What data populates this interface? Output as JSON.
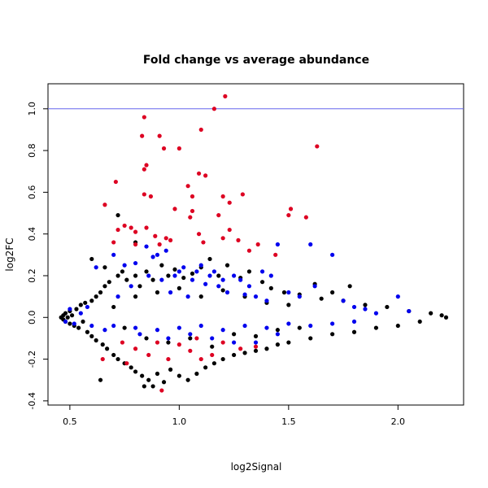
{
  "chart_data": {
    "type": "scatter",
    "title": "Fold change vs average abundance",
    "xlabel": "log2Signal",
    "ylabel": "log2FC",
    "xlim": [
      0.4,
      2.3
    ],
    "ylim": [
      -0.42,
      1.12
    ],
    "x_ticks": [
      0.5,
      1.0,
      1.5,
      2.0
    ],
    "x_tick_labels": [
      "0.5",
      "1.0",
      "1.5",
      "2.0"
    ],
    "y_ticks": [
      -0.4,
      -0.2,
      0.0,
      0.2,
      0.4,
      0.6,
      0.8,
      1.0
    ],
    "y_tick_labels": [
      "-0.4",
      "-0.2",
      "0.0",
      "0.2",
      "0.4",
      "0.6",
      "0.8",
      "1.0"
    ],
    "reference_line": {
      "y": 1.0,
      "color": "#6666ee"
    },
    "grid": false,
    "colors": {
      "black": "#000000",
      "blue": "#0000ee",
      "red": "#dd0022"
    },
    "series": [
      {
        "color": "black",
        "points": [
          [
            0.46,
            0.0
          ],
          [
            0.47,
            0.01
          ],
          [
            0.47,
            -0.01
          ],
          [
            0.48,
            0.02
          ],
          [
            0.48,
            -0.02
          ],
          [
            0.49,
            0.0
          ],
          [
            0.5,
            0.03
          ],
          [
            0.5,
            -0.03
          ],
          [
            0.51,
            0.01
          ],
          [
            0.52,
            -0.04
          ],
          [
            0.53,
            0.04
          ],
          [
            0.54,
            -0.05
          ],
          [
            0.55,
            0.06
          ],
          [
            0.56,
            -0.02
          ],
          [
            0.57,
            0.07
          ],
          [
            0.58,
            -0.07
          ],
          [
            0.6,
            0.08
          ],
          [
            0.6,
            -0.09
          ],
          [
            0.62,
            0.1
          ],
          [
            0.62,
            -0.11
          ],
          [
            0.64,
            0.12
          ],
          [
            0.65,
            -0.13
          ],
          [
            0.66,
            0.15
          ],
          [
            0.67,
            -0.15
          ],
          [
            0.68,
            0.17
          ],
          [
            0.7,
            -0.18
          ],
          [
            0.72,
            0.2
          ],
          [
            0.72,
            -0.2
          ],
          [
            0.74,
            0.22
          ],
          [
            0.75,
            -0.22
          ],
          [
            0.76,
            0.18
          ],
          [
            0.78,
            -0.24
          ],
          [
            0.8,
            0.2
          ],
          [
            0.8,
            -0.26
          ],
          [
            0.82,
            0.15
          ],
          [
            0.83,
            -0.28
          ],
          [
            0.85,
            0.22
          ],
          [
            0.86,
            -0.3
          ],
          [
            0.88,
            0.18
          ],
          [
            0.9,
            -0.27
          ],
          [
            0.92,
            0.25
          ],
          [
            0.93,
            -0.31
          ],
          [
            0.95,
            0.2
          ],
          [
            0.96,
            -0.25
          ],
          [
            0.98,
            0.23
          ],
          [
            1.0,
            -0.28
          ],
          [
            1.02,
            0.19
          ],
          [
            1.04,
            -0.3
          ],
          [
            1.06,
            0.21
          ],
          [
            1.08,
            -0.27
          ],
          [
            1.1,
            0.24
          ],
          [
            1.12,
            -0.24
          ],
          [
            1.14,
            0.28
          ],
          [
            1.16,
            -0.22
          ],
          [
            1.18,
            0.2
          ],
          [
            1.2,
            -0.2
          ],
          [
            1.22,
            0.25
          ],
          [
            1.25,
            -0.18
          ],
          [
            1.28,
            0.19
          ],
          [
            1.3,
            -0.17
          ],
          [
            1.32,
            0.22
          ],
          [
            1.35,
            -0.16
          ],
          [
            1.38,
            0.17
          ],
          [
            1.4,
            -0.15
          ],
          [
            1.42,
            0.14
          ],
          [
            1.45,
            -0.13
          ],
          [
            1.48,
            0.12
          ],
          [
            1.5,
            -0.12
          ],
          [
            1.55,
            0.11
          ],
          [
            1.6,
            -0.1
          ],
          [
            1.65,
            0.09
          ],
          [
            1.7,
            -0.08
          ],
          [
            1.75,
            0.08
          ],
          [
            1.8,
            -0.07
          ],
          [
            1.85,
            0.06
          ],
          [
            1.9,
            -0.05
          ],
          [
            1.95,
            0.05
          ],
          [
            2.0,
            -0.04
          ],
          [
            2.05,
            0.03
          ],
          [
            2.1,
            -0.02
          ],
          [
            2.15,
            0.02
          ],
          [
            2.2,
            0.01
          ],
          [
            2.22,
            0.0
          ],
          [
            0.7,
            0.05
          ],
          [
            0.75,
            -0.05
          ],
          [
            0.8,
            0.1
          ],
          [
            0.85,
            -0.1
          ],
          [
            0.9,
            0.12
          ],
          [
            0.95,
            -0.12
          ],
          [
            1.0,
            0.14
          ],
          [
            1.05,
            -0.1
          ],
          [
            1.1,
            0.1
          ],
          [
            1.15,
            -0.14
          ],
          [
            1.2,
            0.13
          ],
          [
            1.25,
            -0.08
          ],
          [
            1.3,
            0.1
          ],
          [
            1.35,
            -0.09
          ],
          [
            1.4,
            0.07
          ],
          [
            1.45,
            -0.06
          ],
          [
            1.5,
            0.06
          ],
          [
            1.55,
            -0.05
          ],
          [
            0.6,
            0.28
          ],
          [
            0.66,
            0.24
          ],
          [
            0.8,
            0.36
          ],
          [
            0.88,
            -0.33
          ],
          [
            0.84,
            -0.33
          ],
          [
            0.64,
            -0.3
          ],
          [
            0.72,
            0.49
          ],
          [
            1.62,
            0.16
          ],
          [
            1.7,
            0.12
          ],
          [
            1.78,
            0.15
          ]
        ]
      },
      {
        "color": "blue",
        "points": [
          [
            0.48,
            -0.02
          ],
          [
            0.5,
            0.04
          ],
          [
            0.52,
            -0.03
          ],
          [
            0.55,
            0.02
          ],
          [
            0.58,
            0.05
          ],
          [
            0.6,
            -0.04
          ],
          [
            0.62,
            0.24
          ],
          [
            0.66,
            -0.06
          ],
          [
            0.7,
            0.3
          ],
          [
            0.72,
            0.1
          ],
          [
            0.75,
            0.25
          ],
          [
            0.78,
            0.15
          ],
          [
            0.8,
            0.26
          ],
          [
            0.82,
            -0.08
          ],
          [
            0.85,
            0.34
          ],
          [
            0.86,
            0.2
          ],
          [
            0.88,
            0.29
          ],
          [
            0.9,
            0.3
          ],
          [
            0.92,
            0.18
          ],
          [
            0.94,
            0.32
          ],
          [
            0.96,
            0.12
          ],
          [
            0.98,
            0.2
          ],
          [
            1.0,
            0.22
          ],
          [
            1.02,
            0.24
          ],
          [
            1.04,
            0.1
          ],
          [
            1.06,
            0.18
          ],
          [
            1.08,
            0.22
          ],
          [
            1.1,
            0.25
          ],
          [
            1.12,
            0.16
          ],
          [
            1.14,
            0.2
          ],
          [
            1.16,
            0.22
          ],
          [
            1.18,
            0.15
          ],
          [
            1.2,
            0.18
          ],
          [
            1.22,
            0.12
          ],
          [
            1.25,
            0.2
          ],
          [
            1.28,
            0.18
          ],
          [
            1.3,
            0.11
          ],
          [
            1.32,
            0.15
          ],
          [
            1.35,
            0.1
          ],
          [
            1.38,
            0.22
          ],
          [
            1.4,
            0.08
          ],
          [
            1.42,
            0.2
          ],
          [
            1.45,
            0.35
          ],
          [
            1.5,
            0.12
          ],
          [
            1.55,
            0.1
          ],
          [
            1.6,
            0.35
          ],
          [
            1.62,
            0.15
          ],
          [
            1.7,
            0.3
          ],
          [
            1.75,
            0.08
          ],
          [
            1.8,
            0.05
          ],
          [
            1.85,
            0.04
          ],
          [
            1.9,
            0.02
          ],
          [
            2.0,
            0.1
          ],
          [
            2.05,
            0.03
          ],
          [
            0.7,
            -0.04
          ],
          [
            0.8,
            -0.05
          ],
          [
            0.9,
            -0.06
          ],
          [
            1.0,
            -0.05
          ],
          [
            1.1,
            -0.04
          ],
          [
            1.2,
            -0.06
          ],
          [
            1.3,
            -0.04
          ],
          [
            1.4,
            -0.05
          ],
          [
            1.5,
            -0.03
          ],
          [
            1.6,
            -0.04
          ],
          [
            1.7,
            -0.03
          ],
          [
            1.8,
            -0.02
          ],
          [
            0.95,
            -0.1
          ],
          [
            1.05,
            -0.08
          ],
          [
            1.15,
            -0.1
          ],
          [
            1.25,
            -0.12
          ],
          [
            1.35,
            -0.12
          ],
          [
            1.45,
            -0.08
          ]
        ]
      },
      {
        "color": "red",
        "points": [
          [
            0.84,
            0.96
          ],
          [
            0.83,
            0.87
          ],
          [
            0.85,
            0.73
          ],
          [
            0.84,
            0.71
          ],
          [
            0.91,
            0.87
          ],
          [
            0.93,
            0.81
          ],
          [
            1.0,
            0.81
          ],
          [
            1.1,
            0.9
          ],
          [
            1.16,
            1.0
          ],
          [
            1.21,
            1.06
          ],
          [
            1.63,
            0.82
          ],
          [
            1.12,
            0.68
          ],
          [
            1.09,
            0.69
          ],
          [
            1.04,
            0.63
          ],
          [
            1.06,
            0.58
          ],
          [
            1.2,
            0.58
          ],
          [
            1.23,
            0.55
          ],
          [
            1.29,
            0.59
          ],
          [
            0.71,
            0.65
          ],
          [
            0.66,
            0.54
          ],
          [
            0.84,
            0.59
          ],
          [
            0.87,
            0.58
          ],
          [
            0.75,
            0.44
          ],
          [
            0.78,
            0.43
          ],
          [
            0.72,
            0.42
          ],
          [
            0.8,
            0.41
          ],
          [
            0.85,
            0.43
          ],
          [
            0.89,
            0.39
          ],
          [
            0.94,
            0.38
          ],
          [
            0.98,
            0.52
          ],
          [
            1.05,
            0.48
          ],
          [
            1.06,
            0.51
          ],
          [
            1.09,
            0.4
          ],
          [
            1.18,
            0.49
          ],
          [
            1.23,
            0.42
          ],
          [
            1.27,
            0.37
          ],
          [
            1.32,
            0.32
          ],
          [
            1.36,
            0.35
          ],
          [
            1.5,
            0.49
          ],
          [
            1.51,
            0.52
          ],
          [
            1.58,
            0.48
          ],
          [
            1.44,
            0.3
          ],
          [
            0.7,
            0.36
          ],
          [
            0.8,
            0.35
          ],
          [
            0.91,
            0.35
          ],
          [
            0.96,
            0.37
          ],
          [
            1.11,
            0.36
          ],
          [
            1.2,
            0.38
          ],
          [
            0.74,
            -0.12
          ],
          [
            0.8,
            -0.15
          ],
          [
            0.86,
            -0.18
          ],
          [
            0.9,
            -0.12
          ],
          [
            0.95,
            -0.2
          ],
          [
            1.0,
            -0.13
          ],
          [
            1.05,
            -0.16
          ],
          [
            1.1,
            -0.2
          ],
          [
            1.2,
            -0.12
          ],
          [
            1.28,
            -0.15
          ],
          [
            1.35,
            -0.14
          ],
          [
            0.65,
            -0.2
          ],
          [
            0.76,
            -0.22
          ],
          [
            0.92,
            -0.35
          ],
          [
            1.15,
            -0.18
          ],
          [
            1.08,
            -0.1
          ]
        ]
      }
    ]
  }
}
